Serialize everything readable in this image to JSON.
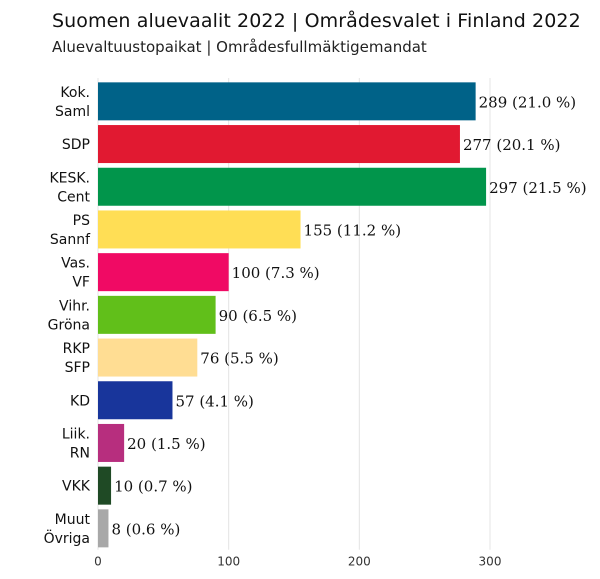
{
  "chart_data": {
    "type": "bar",
    "orientation": "horizontal",
    "title": "Suomen aluevaalit 2022 | Områdesvalet i Finland 2022",
    "subtitle": "Aluevaltuustopaikat | Områdesfullmäktigemandat",
    "categories": [
      [
        "Kok.",
        "Saml"
      ],
      [
        "SDP"
      ],
      [
        "KESK.",
        "Cent"
      ],
      [
        "PS",
        "Sannf"
      ],
      [
        "Vas.",
        "VF"
      ],
      [
        "Vihr.",
        "Gröna"
      ],
      [
        "RKP",
        "SFP"
      ],
      [
        "KD"
      ],
      [
        "Liik.",
        "RN"
      ],
      [
        "VKK"
      ],
      [
        "Muut",
        "Övriga"
      ]
    ],
    "values": [
      289,
      277,
      297,
      155,
      100,
      90,
      76,
      57,
      20,
      10,
      8
    ],
    "value_labels": [
      "289 (21.0 %)",
      "277 (20.1 %)",
      "297 (21.5 %)",
      "155 (11.2 %)",
      "100 (7.3 %)",
      "90 (6.5 %)",
      "76 (5.5 %)",
      "57 (4.1 %)",
      "20 (1.5 %)",
      "10 (0.7 %)",
      "8 (0.6 %)"
    ],
    "colors": [
      "#006288",
      "#E11931",
      "#01954B",
      "#FFDE55",
      "#F00A64",
      "#61BF1A",
      "#FFDD93",
      "#18359B",
      "#B72E7E",
      "#1F4A25",
      "#A8A8A8"
    ],
    "xlim": [
      0,
      300
    ],
    "xticks": [
      0,
      100,
      200,
      300
    ],
    "xlabel": "",
    "ylabel": "",
    "grid": true
  }
}
